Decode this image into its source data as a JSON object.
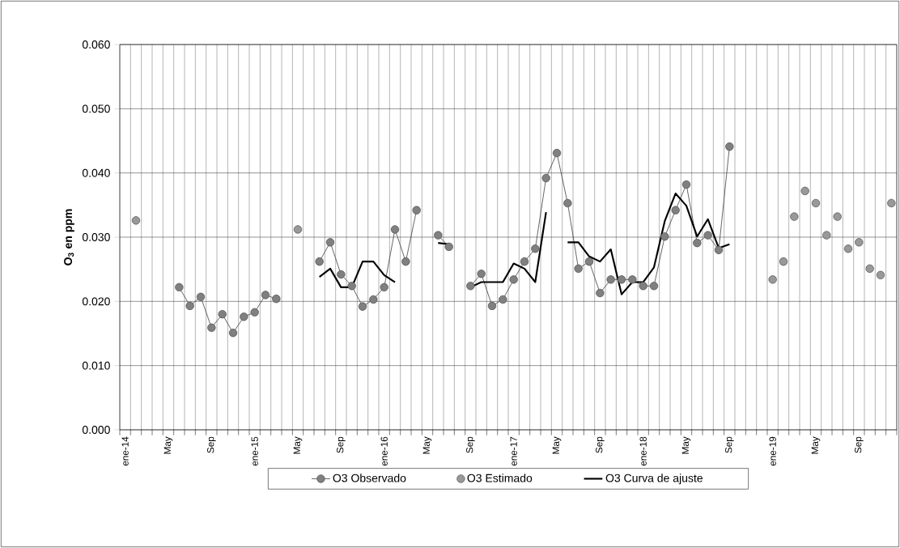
{
  "chart_data": {
    "type": "line",
    "ylabel": "O$_{3}$ en ppm",
    "categories": [
      "ene-14",
      null,
      null,
      null,
      "May",
      null,
      null,
      null,
      "Sep",
      null,
      null,
      null,
      "ene-15",
      null,
      null,
      null,
      "May",
      null,
      null,
      null,
      "Sep",
      null,
      null,
      null,
      "ene-16",
      null,
      null,
      null,
      "May",
      null,
      null,
      null,
      "Sep",
      null,
      null,
      null,
      "ene-17",
      null,
      null,
      null,
      "May",
      null,
      null,
      null,
      "Sep",
      null,
      null,
      null,
      "ene-18",
      null,
      null,
      null,
      "May",
      null,
      null,
      null,
      "Sep",
      null,
      null,
      null,
      "ene-19",
      null,
      null,
      null,
      "May",
      null,
      null,
      null,
      "Sep",
      null,
      null,
      null
    ],
    "series": [
      {
        "name": "O3 Observado",
        "marker": "circle",
        "line_style": "solid",
        "color": "#808080",
        "values": [
          null,
          null,
          null,
          null,
          null,
          0.0222,
          0.0193,
          0.0207,
          0.0159,
          0.018,
          0.0151,
          0.0176,
          0.0183,
          0.021,
          0.0204,
          null,
          null,
          null,
          0.0262,
          0.0292,
          0.0242,
          0.0224,
          0.0192,
          0.0203,
          0.0222,
          0.0312,
          0.0262,
          0.0342,
          null,
          0.0303,
          0.0285,
          null,
          0.0224,
          0.0243,
          0.0193,
          0.0203,
          0.0234,
          0.0262,
          0.0282,
          0.0392,
          0.0431,
          0.0353,
          0.0251,
          0.0262,
          0.0213,
          0.0234,
          0.0234,
          0.0234,
          0.0224,
          0.0224,
          0.0301,
          0.0342,
          0.0382,
          0.0291,
          0.0303,
          0.028,
          0.0441,
          null,
          null,
          null,
          null,
          null,
          null,
          null,
          null,
          null,
          null,
          null,
          null,
          null,
          null,
          null
        ]
      },
      {
        "name": "O3 Estimado",
        "type": "scatter",
        "marker": "circle",
        "color": "#999999",
        "values": [
          null,
          0.0326,
          null,
          null,
          null,
          null,
          null,
          null,
          null,
          null,
          null,
          null,
          null,
          null,
          null,
          null,
          0.0312,
          null,
          null,
          null,
          null,
          null,
          null,
          null,
          null,
          null,
          null,
          null,
          null,
          null,
          null,
          null,
          null,
          null,
          null,
          null,
          null,
          null,
          null,
          null,
          null,
          null,
          null,
          null,
          null,
          null,
          null,
          null,
          null,
          null,
          null,
          null,
          null,
          null,
          null,
          null,
          null,
          null,
          null,
          null,
          0.0234,
          0.0262,
          0.0332,
          0.0372,
          0.0353,
          0.0303,
          0.0332,
          0.0282,
          0.0292,
          0.0251,
          0.0241,
          0.0353
        ]
      },
      {
        "name": "O3 Curva de ajuste",
        "marker": "none",
        "line_style": "solid",
        "color": "#000000",
        "values": [
          null,
          null,
          null,
          null,
          null,
          null,
          null,
          null,
          null,
          null,
          null,
          null,
          null,
          null,
          null,
          null,
          null,
          null,
          0.0238,
          0.0251,
          0.0222,
          0.0222,
          0.0262,
          0.0262,
          0.0241,
          0.023,
          null,
          null,
          null,
          0.0291,
          0.0289,
          null,
          0.0222,
          0.023,
          0.023,
          0.023,
          0.0259,
          0.0251,
          0.023,
          0.0339,
          null,
          0.0292,
          0.0292,
          0.027,
          0.0262,
          0.0281,
          0.0211,
          0.023,
          0.023,
          0.0253,
          0.0325,
          0.0368,
          0.0349,
          0.0301,
          0.0328,
          0.0283,
          0.0289,
          null,
          null,
          null,
          null,
          null,
          null,
          null,
          null,
          null,
          null,
          null,
          null,
          null,
          null,
          null
        ]
      }
    ],
    "ylim": [
      0,
      0.06
    ],
    "yticks": [
      {
        "value": 0,
        "label": "0.000"
      },
      {
        "value": 0.01,
        "label": "0.010"
      },
      {
        "value": 0.02,
        "label": "0.020"
      },
      {
        "value": 0.03,
        "label": "0.030"
      },
      {
        "value": 0.04,
        "label": "0.040"
      },
      {
        "value": 0.05,
        "label": "0.050"
      },
      {
        "value": 0.06,
        "label": "0.060"
      }
    ],
    "grid": true,
    "legend": "bottom"
  }
}
